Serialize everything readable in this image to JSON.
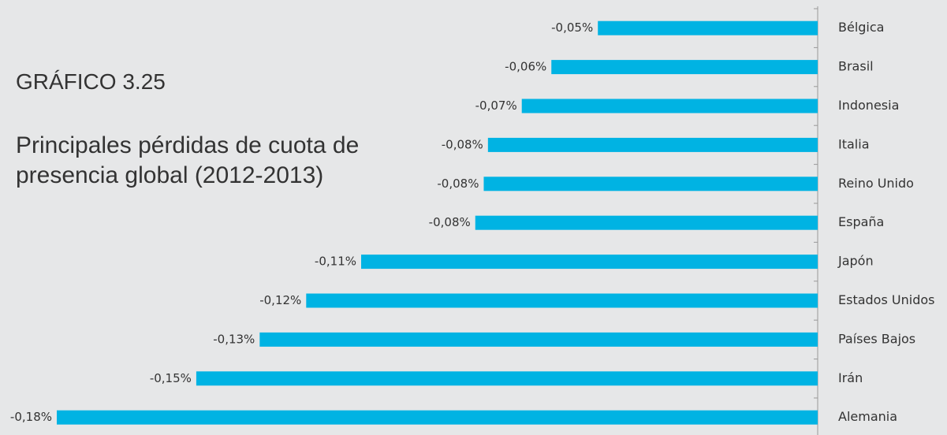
{
  "chart_data": {
    "type": "bar",
    "orientation": "horizontal",
    "title": "GRÁFICO 3.25",
    "subtitle": "Principales pérdidas de cuota de presencia global (2012-2013)",
    "categories": [
      "Bélgica",
      "Brasil",
      "Indonesia",
      "Italia",
      "Reino Unido",
      "España",
      "Japón",
      "Estados Unidos",
      "Países Bajos",
      "Irán",
      "Alemania"
    ],
    "values": [
      -0.052,
      -0.063,
      -0.07,
      -0.078,
      -0.079,
      -0.081,
      -0.108,
      -0.121,
      -0.132,
      -0.147,
      -0.18
    ],
    "value_labels": [
      "-0,05%",
      "-0,06%",
      "-0,07%",
      "-0,08%",
      "-0,08%",
      "-0,08%",
      "-0,11%",
      "-0,12%",
      "-0,13%",
      "-0,15%",
      "-0,18%"
    ],
    "color": "#00b3e3",
    "xlim": [
      -0.18,
      0
    ]
  }
}
